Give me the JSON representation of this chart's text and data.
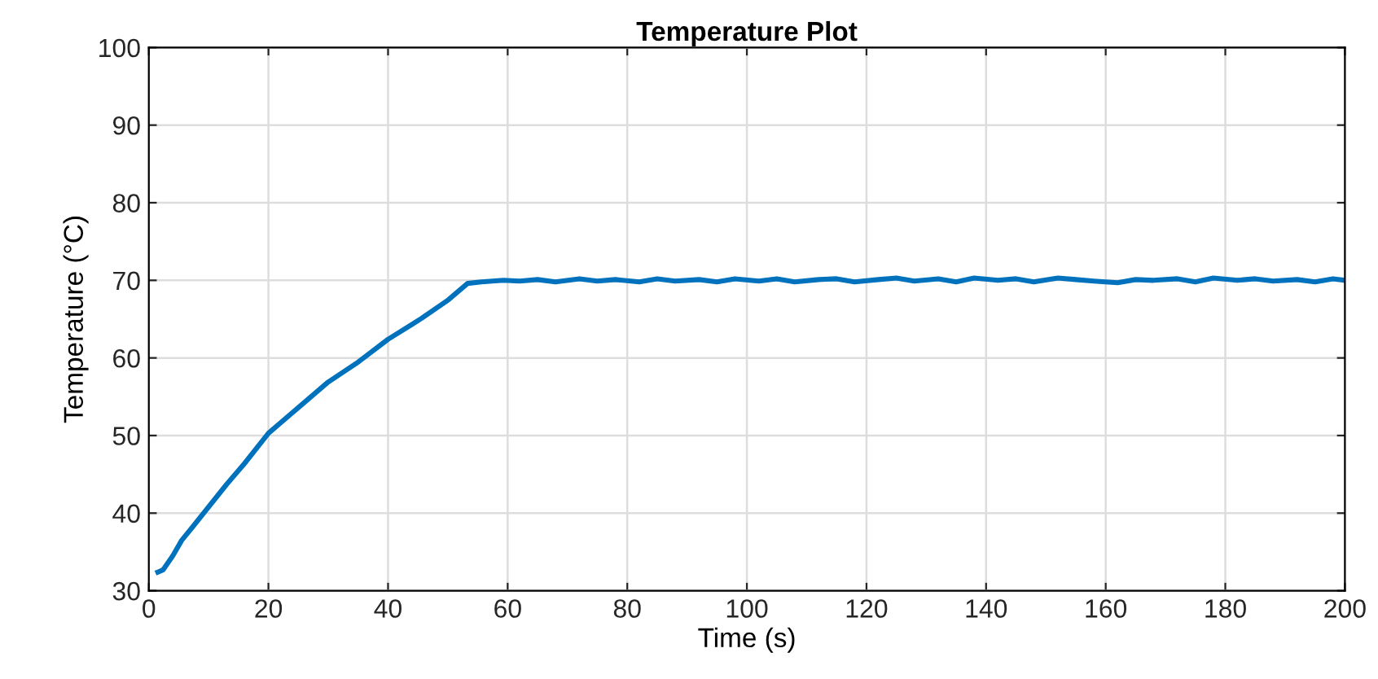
{
  "chart_data": {
    "type": "line",
    "title": "Temperature Plot",
    "xlabel": "Time (s)",
    "ylabel": "Temperature (°C)",
    "xlim": [
      0,
      200
    ],
    "ylim": [
      30,
      100
    ],
    "xticks": [
      0,
      20,
      40,
      60,
      80,
      100,
      120,
      140,
      160,
      180,
      200
    ],
    "yticks": [
      30,
      40,
      50,
      60,
      70,
      80,
      90,
      100
    ],
    "grid": true,
    "series": [
      {
        "color": "#0072bd",
        "line_style": "solid",
        "marker": "none",
        "x": [
          1.5,
          2.4,
          4,
          5.5,
          7.4,
          10.2,
          13,
          16,
          20,
          25.6,
          30,
          34.7,
          40,
          45.6,
          50.1,
          53.3,
          55.6,
          59.3,
          62,
          65,
          68,
          72,
          75,
          78,
          82,
          85,
          88,
          92,
          95,
          98,
          102,
          105,
          108,
          112,
          115,
          118,
          122,
          125,
          128,
          132,
          135,
          138,
          142,
          145,
          148,
          152,
          155,
          158,
          162,
          165,
          168,
          172,
          175,
          178,
          182,
          185,
          188,
          192,
          195,
          198,
          200
        ],
        "values": [
          32.4,
          32.7,
          34.5,
          36.5,
          38.3,
          41,
          43.7,
          46.4,
          50.3,
          54,
          56.9,
          59.3,
          62.4,
          65.1,
          67.5,
          69.6,
          69.8,
          70,
          69.9,
          70.1,
          69.8,
          70.2,
          69.9,
          70.1,
          69.8,
          70.2,
          69.9,
          70.1,
          69.8,
          70.2,
          69.9,
          70.2,
          69.8,
          70.1,
          70.2,
          69.8,
          70.1,
          70.3,
          69.9,
          70.2,
          69.8,
          70.3,
          70,
          70.2,
          69.8,
          70.3,
          70.1,
          69.9,
          69.7,
          70.1,
          70,
          70.2,
          69.8,
          70.3,
          70,
          70.2,
          69.9,
          70.1,
          69.8,
          70.2,
          70
        ]
      }
    ]
  }
}
